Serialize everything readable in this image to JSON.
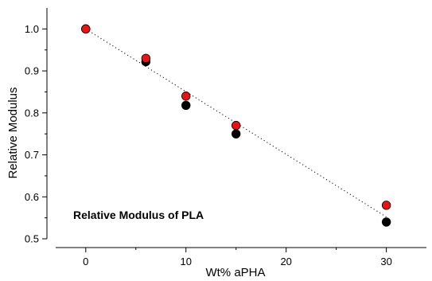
{
  "chart_data": {
    "type": "scatter",
    "title": "",
    "annotation": "Relative Modulus of PLA",
    "xlabel": "Wt% aPHA",
    "ylabel": "Relative Modulus",
    "xlim": [
      -3,
      34
    ],
    "ylim": [
      0.5,
      1.05
    ],
    "x_ticks": [
      0,
      10,
      20,
      30
    ],
    "y_ticks": [
      0.5,
      0.6,
      0.7,
      0.8,
      0.9,
      1.0
    ],
    "x_tick_labels": [
      "0",
      "10",
      "20",
      "30"
    ],
    "y_tick_labels": [
      "0.5",
      "0.6",
      "0.7",
      "0.8",
      "0.9",
      "1.0"
    ],
    "minor_x_ticks": [
      5,
      15,
      25
    ],
    "minor_y_ticks": [
      0.55,
      0.65,
      0.75,
      0.85,
      0.95
    ],
    "series": [
      {
        "color": "#000000",
        "marker": "circle",
        "x": [
          0,
          6,
          10,
          15,
          30
        ],
        "y": [
          1.0,
          0.922,
          0.818,
          0.75,
          0.54
        ]
      },
      {
        "color": "#ee1111",
        "marker": "circle",
        "x": [
          0,
          6,
          10,
          15,
          30
        ],
        "y": [
          1.0,
          0.93,
          0.84,
          0.77,
          0.58
        ]
      }
    ],
    "trendline": {
      "style": "dotted",
      "color": "#000000",
      "x": [
        0,
        30
      ],
      "y": [
        1.0,
        0.552
      ]
    },
    "grid": false,
    "legend": false
  }
}
